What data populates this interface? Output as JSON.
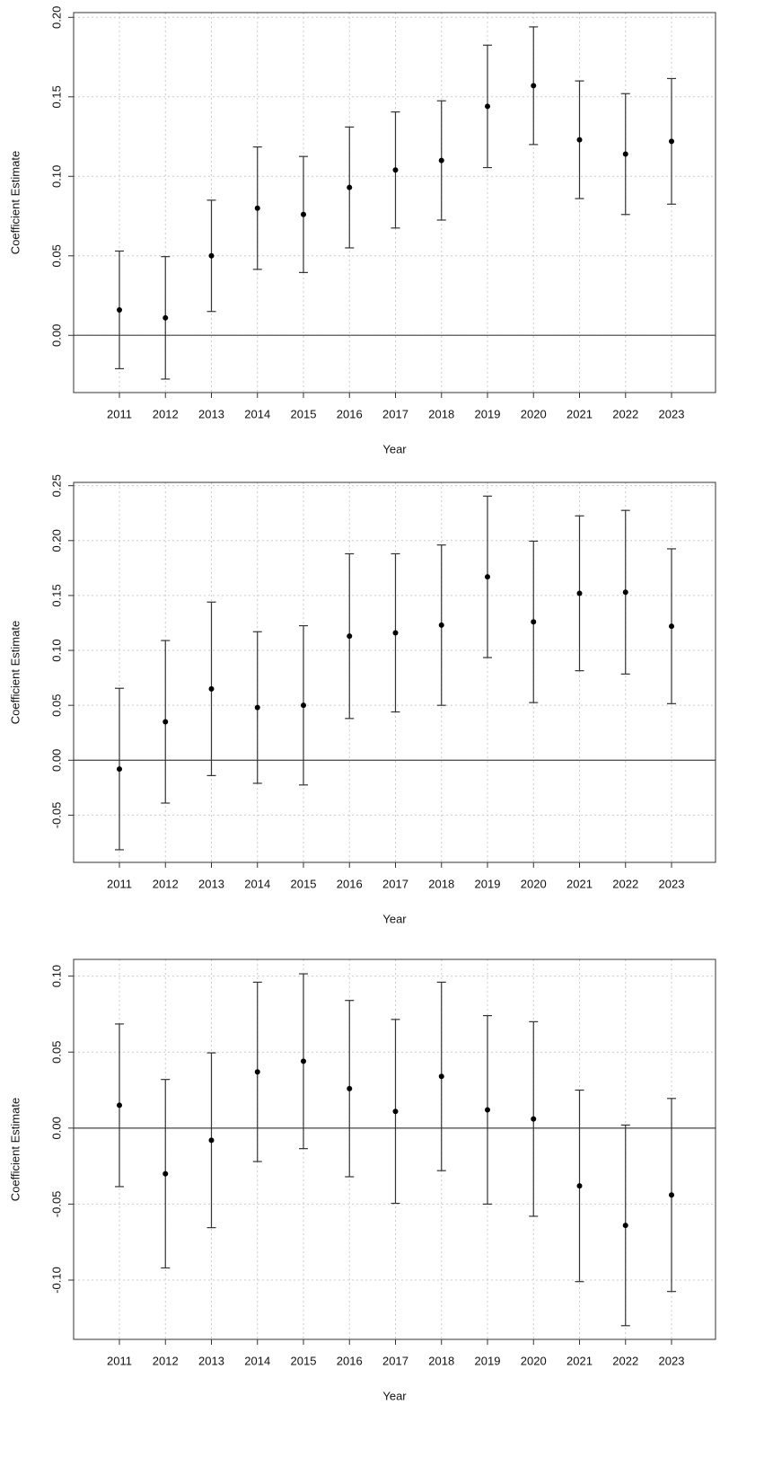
{
  "chart_data": [
    {
      "type": "errorbar",
      "xlabel": "Year",
      "ylabel": "Coefficient Estimate",
      "categories": [
        "2011",
        "2012",
        "2013",
        "2014",
        "2015",
        "2016",
        "2017",
        "2018",
        "2019",
        "2020",
        "2021",
        "2022",
        "2023"
      ],
      "values": [
        0.016,
        0.011,
        0.05,
        0.08,
        0.076,
        0.093,
        0.104,
        0.11,
        0.144,
        0.157,
        0.123,
        0.114,
        0.122
      ],
      "errors": [
        0.037,
        0.0385,
        0.035,
        0.0385,
        0.0365,
        0.038,
        0.0365,
        0.0375,
        0.0385,
        0.037,
        0.037,
        0.038,
        0.0395
      ],
      "color": "#000000",
      "ylim": [
        -0.036,
        0.203
      ],
      "yticks": [
        {
          "value": 0,
          "label": "0.00"
        },
        {
          "value": 0.05,
          "label": "0.05"
        },
        {
          "value": 0.1,
          "label": "0.10"
        },
        {
          "value": 0.15,
          "label": "0.15"
        },
        {
          "value": 0.2,
          "label": "0.20"
        }
      ],
      "grid": true,
      "reference_line": 0
    },
    {
      "type": "errorbar",
      "xlabel": "Year",
      "ylabel": "Coefficient Estimate",
      "categories": [
        "2011",
        "2012",
        "2013",
        "2014",
        "2015",
        "2016",
        "2017",
        "2018",
        "2019",
        "2020",
        "2021",
        "2022",
        "2023"
      ],
      "values": [
        -0.008,
        0.035,
        0.065,
        0.048,
        0.05,
        0.113,
        0.116,
        0.123,
        0.167,
        0.126,
        0.152,
        0.153,
        0.122
      ],
      "errors": [
        0.0735,
        0.074,
        0.079,
        0.069,
        0.0725,
        0.075,
        0.072,
        0.073,
        0.0735,
        0.0735,
        0.0705,
        0.0745,
        0.0705
      ],
      "color": "#000000",
      "ylim": [
        -0.093,
        0.253
      ],
      "yticks": [
        {
          "value": -0.05,
          "label": "-0.05"
        },
        {
          "value": 0,
          "label": "0.00"
        },
        {
          "value": 0.05,
          "label": "0.05"
        },
        {
          "value": 0.1,
          "label": "0.10"
        },
        {
          "value": 0.15,
          "label": "0.15"
        },
        {
          "value": 0.2,
          "label": "0.20"
        },
        {
          "value": 0.25,
          "label": "0.25"
        }
      ],
      "grid": true,
      "reference_line": 0
    },
    {
      "type": "errorbar",
      "xlabel": "Year",
      "ylabel": "Coefficient Estimate",
      "categories": [
        "2011",
        "2012",
        "2013",
        "2014",
        "2015",
        "2016",
        "2017",
        "2018",
        "2019",
        "2020",
        "2021",
        "2022",
        "2023"
      ],
      "values": [
        0.015,
        -0.03,
        -0.008,
        0.037,
        0.044,
        0.026,
        0.011,
        0.034,
        0.012,
        0.006,
        -0.038,
        -0.064,
        -0.044
      ],
      "errors": [
        0.0535,
        0.062,
        0.0575,
        0.059,
        0.0575,
        0.058,
        0.0605,
        0.062,
        0.062,
        0.064,
        0.063,
        0.066,
        0.0635
      ],
      "color": "#000000",
      "ylim": [
        -0.139,
        0.111
      ],
      "yticks": [
        {
          "value": -0.1,
          "label": "-0.10"
        },
        {
          "value": -0.05,
          "label": "-0.05"
        },
        {
          "value": 0,
          "label": "0.00"
        },
        {
          "value": 0.05,
          "label": "0.05"
        },
        {
          "value": 0.1,
          "label": "0.10"
        }
      ],
      "grid": true,
      "reference_line": 0
    }
  ]
}
